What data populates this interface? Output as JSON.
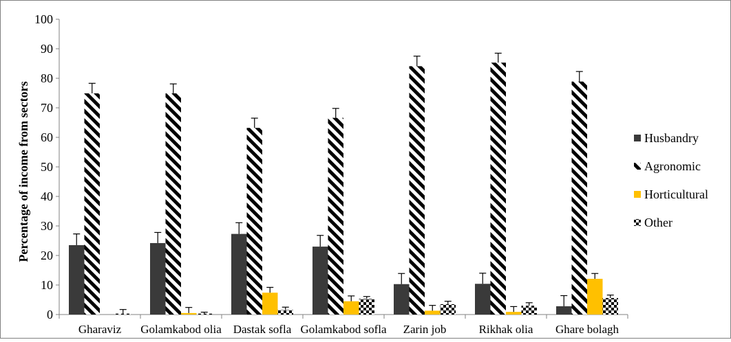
{
  "chart_data": {
    "type": "bar",
    "title": "",
    "xlabel": "",
    "ylabel": "Percentage of income from sectors",
    "ylim": [
      0,
      100
    ],
    "yticks": [
      0,
      10,
      20,
      30,
      40,
      50,
      60,
      70,
      80,
      90,
      100
    ],
    "grid": false,
    "legend_position": "right",
    "error_bars": true,
    "categories": [
      "Gharaviz",
      "Golamkabod olia",
      "Dastak sofla",
      "Golamkabod sofla",
      "Zarin job",
      "Rikhak olia",
      "Ghare bolagh"
    ],
    "series": [
      {
        "name": "Husbandry",
        "pattern": "solid",
        "color": "#3a3a3a",
        "values": [
          23.5,
          24.2,
          27.3,
          23.0,
          10.3,
          10.4,
          2.8
        ],
        "errors": [
          3.8,
          3.6,
          3.8,
          3.8,
          3.6,
          3.6,
          3.6
        ]
      },
      {
        "name": "Agronomic",
        "pattern": "diagonal-stripes",
        "color": "#000000",
        "values": [
          74.9,
          74.9,
          63.2,
          66.6,
          84.1,
          85.3,
          78.9
        ],
        "errors": [
          3.4,
          3.2,
          3.3,
          3.2,
          3.4,
          3.2,
          3.4
        ]
      },
      {
        "name": "Horticultural",
        "pattern": "solid",
        "color": "#ffc000",
        "values": [
          0,
          0.5,
          7.4,
          4.5,
          1.3,
          0.9,
          12.1
        ],
        "errors": [
          0,
          1.9,
          1.8,
          1.8,
          1.8,
          1.8,
          1.8
        ]
      },
      {
        "name": "Other",
        "pattern": "checkered",
        "color": "#000000",
        "values": [
          0.3,
          0.3,
          1.5,
          5.3,
          3.5,
          3.0,
          5.6
        ],
        "errors": [
          1.4,
          0.5,
          1.0,
          0.8,
          1.0,
          1.0,
          1.0
        ]
      }
    ]
  }
}
